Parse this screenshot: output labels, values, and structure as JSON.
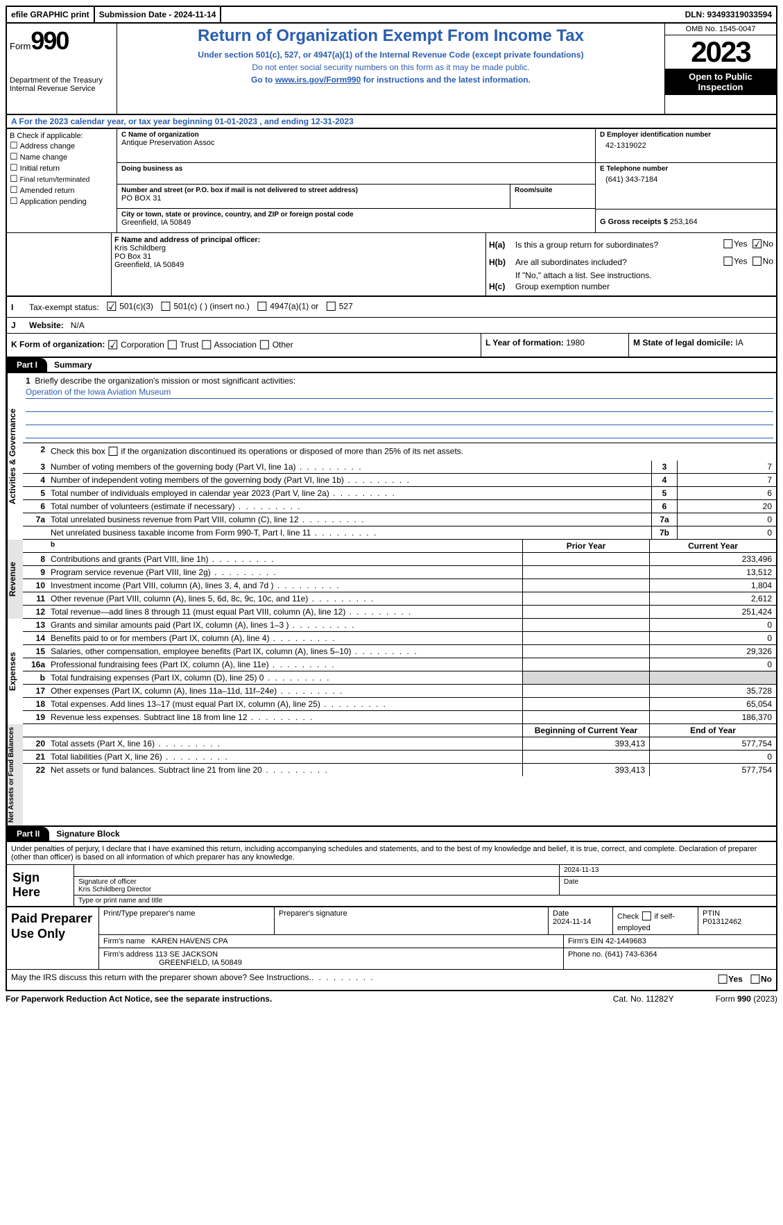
{
  "topbar": {
    "efile": "efile GRAPHIC print",
    "submission": "Submission Date - 2024-11-14",
    "dln": "DLN: 93493319033594"
  },
  "header": {
    "form_word": "Form",
    "form_num": "990",
    "dept": "Department of the Treasury",
    "irs": "Internal Revenue Service",
    "title": "Return of Organization Exempt From Income Tax",
    "sub1": "Under section 501(c), 527, or 4947(a)(1) of the Internal Revenue Code (except private foundations)",
    "sub2": "Do not enter social security numbers on this form as it may be made public.",
    "sub3_pre": "Go to ",
    "sub3_link": "www.irs.gov/Form990",
    "sub3_post": " for instructions and the latest information.",
    "omb": "OMB No. 1545-0047",
    "year": "2023",
    "open": "Open to Public Inspection"
  },
  "row_a": "A For the 2023 calendar year, or tax year beginning 01-01-2023   , and ending 12-31-2023",
  "col_b": {
    "label": "B Check if applicable:",
    "items": [
      "Address change",
      "Name change",
      "Initial return",
      "Final return/terminated",
      "Amended return",
      "Application pending"
    ]
  },
  "col_c": {
    "name_lbl": "C Name of organization",
    "name": "Antique Preservation Assoc",
    "dba_lbl": "Doing business as",
    "dba": "",
    "addr_lbl": "Number and street (or P.O. box if mail is not delivered to street address)",
    "addr": "PO BOX 31",
    "room_lbl": "Room/suite",
    "city_lbl": "City or town, state or province, country, and ZIP or foreign postal code",
    "city": "Greenfield, IA   50849"
  },
  "col_d": {
    "ein_lbl": "D Employer identification number",
    "ein": "42-1319022",
    "phone_lbl": "E Telephone number",
    "phone": "(641) 343-7184",
    "gross_lbl": "G Gross receipts $ ",
    "gross": "253,164"
  },
  "col_f": {
    "lbl": "F  Name and address of principal officer:",
    "name": "Kris Schildberg",
    "addr1": "PO Box 31",
    "addr2": "Greenfield, IA   50849"
  },
  "col_h": {
    "ha_lbl": "Is this a group return for subordinates?",
    "hb_lbl": "Are all subordinates included?",
    "hb_note": "If \"No,\" attach a list. See instructions.",
    "hc_lbl": "Group exemption number ",
    "yes": "Yes",
    "no": "No"
  },
  "row_i": {
    "lbl": "Tax-exempt status:",
    "opt1": "501(c)(3)",
    "opt2": "501(c) (  ) (insert no.)",
    "opt3": "4947(a)(1) or",
    "opt4": "527"
  },
  "row_j": {
    "lbl": "Website:  ",
    "val": "N/A"
  },
  "row_k": {
    "lbl": "K Form of organization:",
    "opts": [
      "Corporation",
      "Trust",
      "Association",
      "Other"
    ],
    "l_lbl": "L Year of formation: ",
    "l_val": "1980",
    "m_lbl": "M State of legal domicile: ",
    "m_val": "IA"
  },
  "parts": {
    "p1": "Part I",
    "p1_title": "Summary",
    "p2": "Part II",
    "p2_title": "Signature Block"
  },
  "mission": {
    "lbl": "Briefly describe the organization's mission or most significant activities:",
    "text": "Operation of the Iowa Aviation Museum"
  },
  "line2": "Check this box       if the organization discontinued its operations or disposed of more than 25% of its net assets.",
  "sidebars": {
    "s1": "Activities & Governance",
    "s2": "Revenue",
    "s3": "Expenses",
    "s4": "Net Assets or Fund Balances"
  },
  "gov_rows": [
    {
      "n": "3",
      "d": "Number of voting members of the governing body (Part VI, line 1a)",
      "b": "3",
      "v": "7"
    },
    {
      "n": "4",
      "d": "Number of independent voting members of the governing body (Part VI, line 1b)",
      "b": "4",
      "v": "7"
    },
    {
      "n": "5",
      "d": "Total number of individuals employed in calendar year 2023 (Part V, line 2a)",
      "b": "5",
      "v": "6"
    },
    {
      "n": "6",
      "d": "Total number of volunteers (estimate if necessary)",
      "b": "6",
      "v": "20"
    },
    {
      "n": "7a",
      "d": "Total unrelated business revenue from Part VIII, column (C), line 12",
      "b": "7a",
      "v": "0"
    },
    {
      "n": "",
      "d": "Net unrelated business taxable income from Form 990-T, Part I, line 11",
      "b": "7b",
      "v": "0"
    }
  ],
  "col_hdrs": {
    "prior": "Prior Year",
    "current": "Current Year",
    "boy": "Beginning of Current Year",
    "eoy": "End of Year"
  },
  "rev_rows": [
    {
      "n": "8",
      "d": "Contributions and grants (Part VIII, line 1h)",
      "p": "",
      "c": "233,496"
    },
    {
      "n": "9",
      "d": "Program service revenue (Part VIII, line 2g)",
      "p": "",
      "c": "13,512"
    },
    {
      "n": "10",
      "d": "Investment income (Part VIII, column (A), lines 3, 4, and 7d )",
      "p": "",
      "c": "1,804"
    },
    {
      "n": "11",
      "d": "Other revenue (Part VIII, column (A), lines 5, 6d, 8c, 9c, 10c, and 11e)",
      "p": "",
      "c": "2,612"
    },
    {
      "n": "12",
      "d": "Total revenue—add lines 8 through 11 (must equal Part VIII, column (A), line 12)",
      "p": "",
      "c": "251,424"
    }
  ],
  "exp_rows": [
    {
      "n": "13",
      "d": "Grants and similar amounts paid (Part IX, column (A), lines 1–3 )",
      "p": "",
      "c": "0"
    },
    {
      "n": "14",
      "d": "Benefits paid to or for members (Part IX, column (A), line 4)",
      "p": "",
      "c": "0"
    },
    {
      "n": "15",
      "d": "Salaries, other compensation, employee benefits (Part IX, column (A), lines 5–10)",
      "p": "",
      "c": "29,326"
    },
    {
      "n": "16a",
      "d": "Professional fundraising fees (Part IX, column (A), line 11e)",
      "p": "",
      "c": "0"
    },
    {
      "n": "b",
      "d": "Total fundraising expenses (Part IX, column (D), line 25) 0",
      "p": "gray",
      "c": "gray"
    },
    {
      "n": "17",
      "d": "Other expenses (Part IX, column (A), lines 11a–11d, 11f–24e)",
      "p": "",
      "c": "35,728"
    },
    {
      "n": "18",
      "d": "Total expenses. Add lines 13–17 (must equal Part IX, column (A), line 25)",
      "p": "",
      "c": "65,054"
    },
    {
      "n": "19",
      "d": "Revenue less expenses. Subtract line 18 from line 12",
      "p": "",
      "c": "186,370"
    }
  ],
  "net_rows": [
    {
      "n": "20",
      "d": "Total assets (Part X, line 16)",
      "p": "393,413",
      "c": "577,754"
    },
    {
      "n": "21",
      "d": "Total liabilities (Part X, line 26)",
      "p": "",
      "c": "0"
    },
    {
      "n": "22",
      "d": "Net assets or fund balances. Subtract line 21 from line 20",
      "p": "393,413",
      "c": "577,754"
    }
  ],
  "penalty": "Under penalties of perjury, I declare that I have examined this return, including accompanying schedules and statements, and to the best of my knowledge and belief, it is true, correct, and complete. Declaration of preparer (other than officer) is based on all information of which preparer has any knowledge.",
  "sign": {
    "here": "Sign Here",
    "date": "2024-11-13",
    "sig_lbl": "Signature of officer",
    "name": "Kris Schildberg  Director",
    "type_lbl": "Type or print name and title",
    "date_lbl": "Date"
  },
  "prep": {
    "title": "Paid Preparer Use Only",
    "c1": "Print/Type preparer's name",
    "c2": "Preparer's signature",
    "c3_lbl": "Date",
    "c3": "2024-11-14",
    "c4": "Check        if self-employed",
    "c5_lbl": "PTIN",
    "c5": "P01312462",
    "firm_name_lbl": "Firm's name   ",
    "firm_name": "KAREN HAVENS CPA",
    "firm_ein_lbl": "Firm's EIN  ",
    "firm_ein": "42-1449683",
    "firm_addr_lbl": "Firm's address ",
    "firm_addr1": "113 SE JACKSON",
    "firm_addr2": "GREENFIELD, IA   50849",
    "phone_lbl": "Phone no. ",
    "phone": "(641) 743-6364"
  },
  "discuss": "May the IRS discuss this return with the preparer shown above? See Instructions.",
  "footer": {
    "pra": "For Paperwork Reduction Act Notice, see the separate instructions.",
    "cat": "Cat. No. 11282Y",
    "form": "Form 990 (2023)"
  }
}
